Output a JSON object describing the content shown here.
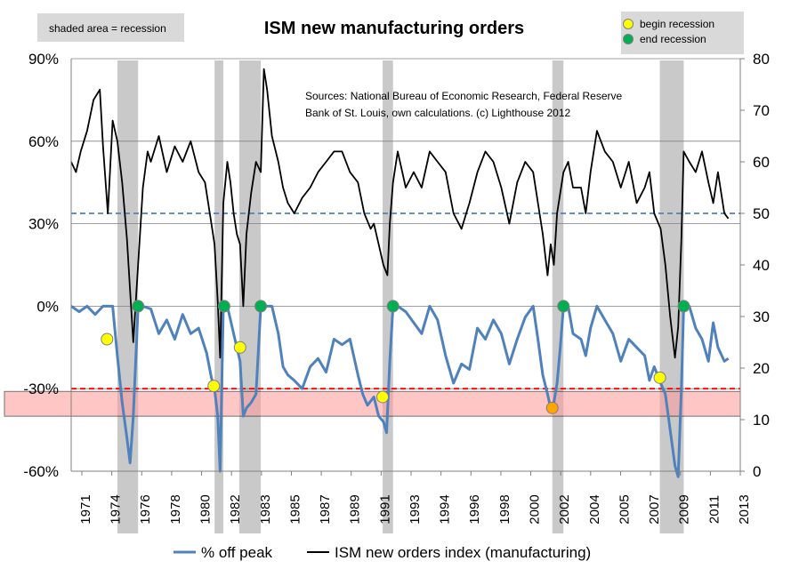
{
  "chart_data": {
    "type": "line",
    "title": "ISM new manufacturing orders",
    "shade_note": "shaded area = recession",
    "source_note": [
      "Sources: National Bureau of Economic Research, Federal Reserve",
      "Bank of St. Louis, own calculations. (c) Lighthouse 2012"
    ],
    "marker_legend": [
      {
        "label": "begin recession",
        "color": "#ffff00"
      },
      {
        "label": "end recession",
        "color": "#00b050"
      }
    ],
    "x_axis": {
      "range": [
        1971.0,
        2013.0
      ],
      "tick_labels": [
        "1971",
        "1974",
        "1976",
        "1978",
        "1980",
        "1982",
        "1983",
        "1985",
        "1987",
        "1989",
        "1991",
        "1993",
        "1994",
        "1996",
        "1998",
        "2000",
        "2002",
        "2004",
        "2005",
        "2007",
        "2009",
        "2011",
        "2013"
      ]
    },
    "y_left": {
      "range": [
        -60,
        90
      ],
      "ticks": [
        -60,
        -30,
        0,
        30,
        60,
        90
      ],
      "tick_labels": [
        "-60%",
        "-30%",
        "0%",
        "30%",
        "60%",
        "90%"
      ]
    },
    "y_right": {
      "range": [
        0,
        80
      ],
      "ticks": [
        0,
        10,
        20,
        30,
        40,
        50,
        60,
        70,
        80
      ],
      "tick_labels": [
        "0",
        "10",
        "20",
        "30",
        "40",
        "50",
        "60",
        "70",
        "80"
      ]
    },
    "recessions": [
      [
        1973.9,
        1975.2
      ],
      [
        1980.0,
        1980.55
      ],
      [
        1981.55,
        1982.9
      ],
      [
        1990.55,
        1991.2
      ],
      [
        2001.2,
        2001.9
      ],
      [
        2007.95,
        2009.45
      ]
    ],
    "reference_lines": [
      {
        "axis": "right",
        "value": 50,
        "style": "dashed",
        "color": "#4f81bd"
      },
      {
        "axis": "left",
        "value": -30,
        "style": "dashed",
        "color": "#ff0000"
      }
    ],
    "band": {
      "axis": "left",
      "from": -40,
      "to": -31,
      "color": "#ff9999"
    },
    "series": [
      {
        "name": "% off peak",
        "axis": "left",
        "color": "#4f81bd",
        "x": [
          1971.0,
          1971.5,
          1972.0,
          1972.5,
          1973.0,
          1973.3,
          1973.6,
          1973.9,
          1974.2,
          1974.5,
          1974.7,
          1974.9,
          1975.2,
          1975.5,
          1976.0,
          1976.5,
          1977.0,
          1977.5,
          1978.0,
          1978.5,
          1979.0,
          1979.5,
          1979.8,
          1980.0,
          1980.2,
          1980.35,
          1980.55,
          1980.8,
          1981.2,
          1981.4,
          1981.6,
          1981.8,
          1982.0,
          1982.3,
          1982.6,
          1982.9,
          1983.2,
          1983.6,
          1984.0,
          1984.3,
          1984.6,
          1985.0,
          1985.5,
          1986.0,
          1986.5,
          1987.0,
          1987.5,
          1988.0,
          1988.5,
          1989.0,
          1989.3,
          1989.6,
          1990.0,
          1990.3,
          1990.6,
          1990.8,
          1991.0,
          1991.2,
          1991.5,
          1992.0,
          1992.5,
          1993.0,
          1993.5,
          1994.0,
          1994.5,
          1995.0,
          1995.5,
          1996.0,
          1996.5,
          1997.0,
          1997.5,
          1998.0,
          1998.5,
          1999.0,
          1999.5,
          2000.0,
          2000.3,
          2000.6,
          2000.9,
          2001.1,
          2001.3,
          2001.5,
          2001.7,
          2001.9,
          2002.2,
          2002.5,
          2003.0,
          2003.3,
          2003.6,
          2004.0,
          2004.5,
          2005.0,
          2005.5,
          2006.0,
          2006.5,
          2007.0,
          2007.3,
          2007.6,
          2008.0,
          2008.3,
          2008.6,
          2008.9,
          2009.1,
          2009.3,
          2009.45,
          2009.8,
          2010.2,
          2010.6,
          2011.0,
          2011.3,
          2011.6,
          2012.0,
          2012.25
        ],
        "values": [
          0,
          -2,
          0,
          -3,
          0,
          0,
          0,
          -18,
          -35,
          -48,
          -57,
          -40,
          0,
          0,
          -1,
          -10,
          -5,
          -12,
          -3,
          -10,
          -8,
          -17,
          -26,
          -30,
          -40,
          -60,
          0,
          0,
          -10,
          -15,
          -20,
          -40,
          -37,
          -35,
          -32,
          0,
          0,
          0,
          -10,
          -22,
          -25,
          -27,
          -30,
          -22,
          -19,
          -24,
          -12,
          -14,
          -12,
          -25,
          -32,
          -36,
          -33,
          -40,
          -42,
          -46,
          -20,
          0,
          0,
          -2,
          -6,
          -10,
          0,
          -5,
          -18,
          -28,
          -21,
          -23,
          -8,
          -12,
          -5,
          -10,
          -21,
          -12,
          -4,
          0,
          -12,
          -25,
          -32,
          -37,
          -35,
          -28,
          -15,
          0,
          0,
          -10,
          -12,
          -18,
          -8,
          0,
          -5,
          -10,
          -20,
          -12,
          -15,
          -18,
          -27,
          -22,
          -28,
          -32,
          -45,
          -58,
          -62,
          -30,
          0,
          0,
          -8,
          -12,
          -20,
          -6,
          -15,
          -20,
          -19
        ]
      },
      {
        "name": "ISM new orders index (manufacturing)",
        "axis": "right",
        "color": "#000000",
        "x": [
          1971.0,
          1971.3,
          1971.6,
          1972.0,
          1972.4,
          1972.8,
          1973.0,
          1973.3,
          1973.6,
          1973.9,
          1974.2,
          1974.5,
          1974.7,
          1974.9,
          1975.2,
          1975.5,
          1975.8,
          1976.0,
          1976.5,
          1977.0,
          1977.5,
          1978.0,
          1978.5,
          1979.0,
          1979.4,
          1979.8,
          1980.0,
          1980.2,
          1980.35,
          1980.55,
          1980.8,
          1981.0,
          1981.2,
          1981.4,
          1981.6,
          1981.8,
          1982.0,
          1982.3,
          1982.6,
          1982.9,
          1983.1,
          1983.3,
          1983.6,
          1984.0,
          1984.3,
          1984.6,
          1985.0,
          1985.5,
          1986.0,
          1986.5,
          1987.0,
          1987.5,
          1988.0,
          1988.5,
          1989.0,
          1989.4,
          1989.8,
          1990.0,
          1990.3,
          1990.6,
          1990.85,
          1991.0,
          1991.2,
          1991.5,
          1992.0,
          1992.5,
          1993.0,
          1993.5,
          1994.0,
          1994.5,
          1995.0,
          1995.5,
          1996.0,
          1996.5,
          1997.0,
          1997.5,
          1998.0,
          1998.5,
          1999.0,
          1999.5,
          2000.0,
          2000.3,
          2000.6,
          2000.9,
          2001.1,
          2001.3,
          2001.5,
          2001.7,
          2001.9,
          2002.2,
          2002.5,
          2003.0,
          2003.3,
          2003.6,
          2004.0,
          2004.5,
          2005.0,
          2005.5,
          2006.0,
          2006.5,
          2007.0,
          2007.3,
          2007.6,
          2008.0,
          2008.3,
          2008.6,
          2008.9,
          2009.1,
          2009.3,
          2009.45,
          2009.8,
          2010.2,
          2010.6,
          2011.0,
          2011.3,
          2011.6,
          2012.0,
          2012.25
        ],
        "values": [
          60,
          58,
          62,
          66,
          72,
          74,
          63,
          50,
          68,
          64,
          56,
          45,
          35,
          25,
          40,
          55,
          62,
          60,
          65,
          58,
          63,
          60,
          64,
          58,
          56,
          48,
          44,
          33,
          22,
          52,
          60,
          56,
          50,
          46,
          44,
          32,
          46,
          54,
          60,
          58,
          78,
          74,
          65,
          60,
          55,
          52,
          50,
          53,
          55,
          58,
          60,
          62,
          62,
          58,
          56,
          50,
          47,
          48,
          44,
          40,
          38,
          48,
          56,
          62,
          55,
          58,
          55,
          62,
          60,
          58,
          50,
          47,
          52,
          58,
          62,
          60,
          55,
          48,
          56,
          60,
          58,
          52,
          46,
          38,
          44,
          40,
          50,
          54,
          58,
          60,
          55,
          55,
          50,
          58,
          66,
          62,
          60,
          55,
          60,
          52,
          55,
          58,
          50,
          47,
          40,
          30,
          22,
          28,
          45,
          62,
          60,
          58,
          62,
          56,
          52,
          58,
          50,
          49
        ]
      }
    ],
    "markers": [
      {
        "x": 1973.25,
        "y": -12,
        "kind": "begin",
        "color": "#ffff00"
      },
      {
        "x": 1975.2,
        "y": 0,
        "kind": "end",
        "color": "#00b050"
      },
      {
        "x": 1979.95,
        "y": -29,
        "kind": "begin",
        "color": "#ffff00"
      },
      {
        "x": 1980.6,
        "y": 0,
        "kind": "end",
        "color": "#00b050"
      },
      {
        "x": 1981.6,
        "y": -15,
        "kind": "begin",
        "color": "#ffff00"
      },
      {
        "x": 1982.9,
        "y": 0,
        "kind": "end",
        "color": "#00b050"
      },
      {
        "x": 1990.55,
        "y": -33,
        "kind": "begin",
        "color": "#ffff00"
      },
      {
        "x": 1991.2,
        "y": 0,
        "kind": "end",
        "color": "#00b050"
      },
      {
        "x": 2001.2,
        "y": -37,
        "kind": "begin",
        "color": "#ffa500"
      },
      {
        "x": 2001.9,
        "y": 0,
        "kind": "end",
        "color": "#00b050"
      },
      {
        "x": 2007.95,
        "y": -26,
        "kind": "begin",
        "color": "#ffff00"
      },
      {
        "x": 2009.45,
        "y": 0,
        "kind": "end",
        "color": "#00b050"
      }
    ],
    "legend": [
      {
        "label": "% off peak",
        "color": "#4f81bd"
      },
      {
        "label": "ISM new orders index (manufacturing)",
        "color": "#000000"
      }
    ],
    "grid": true,
    "legend_position": "bottom"
  }
}
